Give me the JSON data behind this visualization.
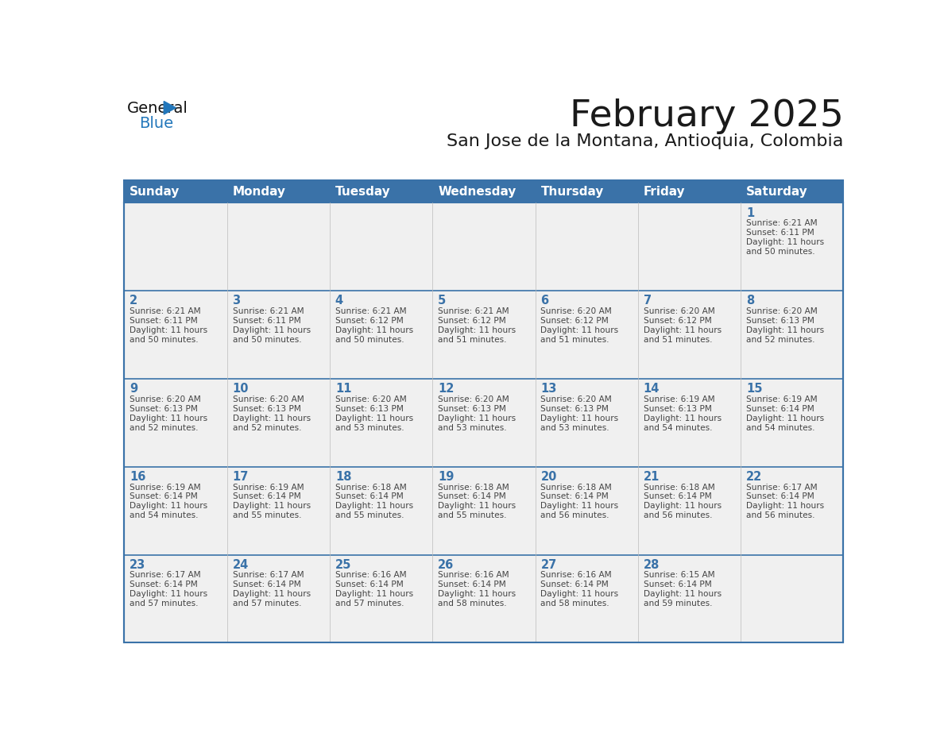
{
  "title": "February 2025",
  "subtitle": "San Jose de la Montana, Antioquia, Colombia",
  "header_color": "#3A72A8",
  "header_text_color": "#FFFFFF",
  "cell_bg_color": "#F0F0F0",
  "day_names": [
    "Sunday",
    "Monday",
    "Tuesday",
    "Wednesday",
    "Thursday",
    "Friday",
    "Saturday"
  ],
  "text_color": "#333333",
  "number_color": "#3A72A8",
  "line_color": "#3A72A8",
  "days": [
    {
      "day": 1,
      "col": 6,
      "row": 0,
      "sunrise": "6:21 AM",
      "sunset": "6:11 PM",
      "daylight_h": "11 hours",
      "daylight_m": "and 50 minutes."
    },
    {
      "day": 2,
      "col": 0,
      "row": 1,
      "sunrise": "6:21 AM",
      "sunset": "6:11 PM",
      "daylight_h": "11 hours",
      "daylight_m": "and 50 minutes."
    },
    {
      "day": 3,
      "col": 1,
      "row": 1,
      "sunrise": "6:21 AM",
      "sunset": "6:11 PM",
      "daylight_h": "11 hours",
      "daylight_m": "and 50 minutes."
    },
    {
      "day": 4,
      "col": 2,
      "row": 1,
      "sunrise": "6:21 AM",
      "sunset": "6:12 PM",
      "daylight_h": "11 hours",
      "daylight_m": "and 50 minutes."
    },
    {
      "day": 5,
      "col": 3,
      "row": 1,
      "sunrise": "6:21 AM",
      "sunset": "6:12 PM",
      "daylight_h": "11 hours",
      "daylight_m": "and 51 minutes."
    },
    {
      "day": 6,
      "col": 4,
      "row": 1,
      "sunrise": "6:20 AM",
      "sunset": "6:12 PM",
      "daylight_h": "11 hours",
      "daylight_m": "and 51 minutes."
    },
    {
      "day": 7,
      "col": 5,
      "row": 1,
      "sunrise": "6:20 AM",
      "sunset": "6:12 PM",
      "daylight_h": "11 hours",
      "daylight_m": "and 51 minutes."
    },
    {
      "day": 8,
      "col": 6,
      "row": 1,
      "sunrise": "6:20 AM",
      "sunset": "6:13 PM",
      "daylight_h": "11 hours",
      "daylight_m": "and 52 minutes."
    },
    {
      "day": 9,
      "col": 0,
      "row": 2,
      "sunrise": "6:20 AM",
      "sunset": "6:13 PM",
      "daylight_h": "11 hours",
      "daylight_m": "and 52 minutes."
    },
    {
      "day": 10,
      "col": 1,
      "row": 2,
      "sunrise": "6:20 AM",
      "sunset": "6:13 PM",
      "daylight_h": "11 hours",
      "daylight_m": "and 52 minutes."
    },
    {
      "day": 11,
      "col": 2,
      "row": 2,
      "sunrise": "6:20 AM",
      "sunset": "6:13 PM",
      "daylight_h": "11 hours",
      "daylight_m": "and 53 minutes."
    },
    {
      "day": 12,
      "col": 3,
      "row": 2,
      "sunrise": "6:20 AM",
      "sunset": "6:13 PM",
      "daylight_h": "11 hours",
      "daylight_m": "and 53 minutes."
    },
    {
      "day": 13,
      "col": 4,
      "row": 2,
      "sunrise": "6:20 AM",
      "sunset": "6:13 PM",
      "daylight_h": "11 hours",
      "daylight_m": "and 53 minutes."
    },
    {
      "day": 14,
      "col": 5,
      "row": 2,
      "sunrise": "6:19 AM",
      "sunset": "6:13 PM",
      "daylight_h": "11 hours",
      "daylight_m": "and 54 minutes."
    },
    {
      "day": 15,
      "col": 6,
      "row": 2,
      "sunrise": "6:19 AM",
      "sunset": "6:14 PM",
      "daylight_h": "11 hours",
      "daylight_m": "and 54 minutes."
    },
    {
      "day": 16,
      "col": 0,
      "row": 3,
      "sunrise": "6:19 AM",
      "sunset": "6:14 PM",
      "daylight_h": "11 hours",
      "daylight_m": "and 54 minutes."
    },
    {
      "day": 17,
      "col": 1,
      "row": 3,
      "sunrise": "6:19 AM",
      "sunset": "6:14 PM",
      "daylight_h": "11 hours",
      "daylight_m": "and 55 minutes."
    },
    {
      "day": 18,
      "col": 2,
      "row": 3,
      "sunrise": "6:18 AM",
      "sunset": "6:14 PM",
      "daylight_h": "11 hours",
      "daylight_m": "and 55 minutes."
    },
    {
      "day": 19,
      "col": 3,
      "row": 3,
      "sunrise": "6:18 AM",
      "sunset": "6:14 PM",
      "daylight_h": "11 hours",
      "daylight_m": "and 55 minutes."
    },
    {
      "day": 20,
      "col": 4,
      "row": 3,
      "sunrise": "6:18 AM",
      "sunset": "6:14 PM",
      "daylight_h": "11 hours",
      "daylight_m": "and 56 minutes."
    },
    {
      "day": 21,
      "col": 5,
      "row": 3,
      "sunrise": "6:18 AM",
      "sunset": "6:14 PM",
      "daylight_h": "11 hours",
      "daylight_m": "and 56 minutes."
    },
    {
      "day": 22,
      "col": 6,
      "row": 3,
      "sunrise": "6:17 AM",
      "sunset": "6:14 PM",
      "daylight_h": "11 hours",
      "daylight_m": "and 56 minutes."
    },
    {
      "day": 23,
      "col": 0,
      "row": 4,
      "sunrise": "6:17 AM",
      "sunset": "6:14 PM",
      "daylight_h": "11 hours",
      "daylight_m": "and 57 minutes."
    },
    {
      "day": 24,
      "col": 1,
      "row": 4,
      "sunrise": "6:17 AM",
      "sunset": "6:14 PM",
      "daylight_h": "11 hours",
      "daylight_m": "and 57 minutes."
    },
    {
      "day": 25,
      "col": 2,
      "row": 4,
      "sunrise": "6:16 AM",
      "sunset": "6:14 PM",
      "daylight_h": "11 hours",
      "daylight_m": "and 57 minutes."
    },
    {
      "day": 26,
      "col": 3,
      "row": 4,
      "sunrise": "6:16 AM",
      "sunset": "6:14 PM",
      "daylight_h": "11 hours",
      "daylight_m": "and 58 minutes."
    },
    {
      "day": 27,
      "col": 4,
      "row": 4,
      "sunrise": "6:16 AM",
      "sunset": "6:14 PM",
      "daylight_h": "11 hours",
      "daylight_m": "and 58 minutes."
    },
    {
      "day": 28,
      "col": 5,
      "row": 4,
      "sunrise": "6:15 AM",
      "sunset": "6:14 PM",
      "daylight_h": "11 hours",
      "daylight_m": "and 59 minutes."
    }
  ]
}
